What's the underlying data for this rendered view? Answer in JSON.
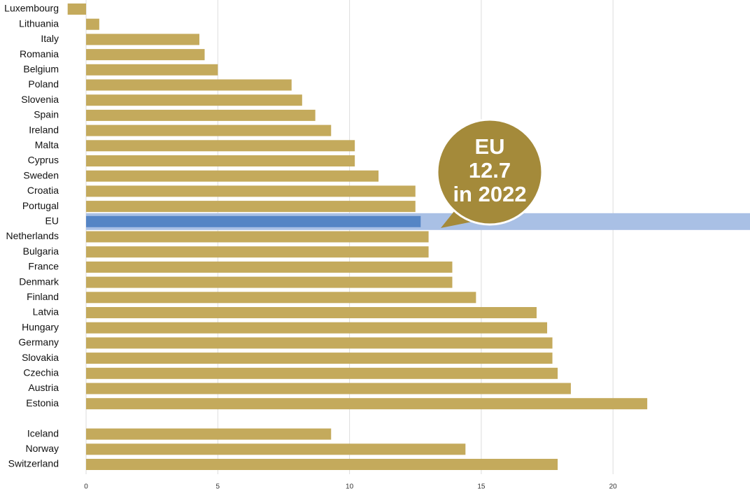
{
  "chart_data": {
    "type": "bar",
    "orientation": "horizontal",
    "categories": [
      "Luxembourg",
      "Lithuania",
      "Italy",
      "Romania",
      "Belgium",
      "Poland",
      "Slovenia",
      "Spain",
      "Ireland",
      "Malta",
      "Cyprus",
      "Sweden",
      "Croatia",
      "Portugal",
      "EU",
      "Netherlands",
      "Bulgaria",
      "France",
      "Denmark",
      "Finland",
      "Latvia",
      "Hungary",
      "Germany",
      "Slovakia",
      "Czechia",
      "Austria",
      "Estonia",
      null,
      "Iceland",
      "Norway",
      "Switzerland"
    ],
    "values": [
      -0.7,
      0.5,
      4.3,
      4.5,
      5.0,
      7.8,
      8.2,
      8.7,
      9.3,
      10.2,
      10.2,
      11.1,
      12.5,
      12.5,
      12.7,
      13.0,
      13.0,
      13.9,
      13.9,
      14.8,
      17.1,
      17.5,
      17.7,
      17.7,
      17.9,
      18.4,
      21.3,
      null,
      9.3,
      14.4,
      17.9
    ],
    "color": "#c4aa5c",
    "highlight_index": 14,
    "highlight_color": "#5585c5",
    "highlight_band_color": "#a9c0e5",
    "xlim": [
      -1,
      25.2
    ],
    "xticks": [
      0,
      5,
      10,
      15,
      20
    ],
    "grid": true,
    "annotation": {
      "lines": [
        "EU",
        "12.7",
        "in 2022"
      ],
      "color": "#a48a3a"
    }
  }
}
